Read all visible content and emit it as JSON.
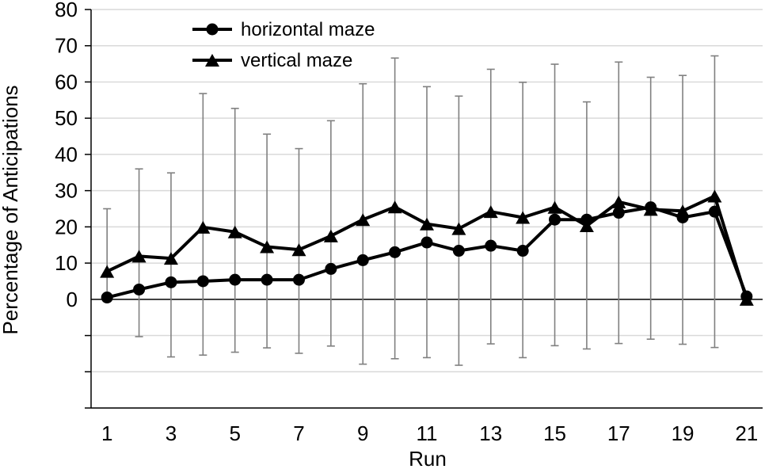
{
  "chart_data": {
    "type": "line",
    "title": "",
    "xlabel": "Run",
    "ylabel": "Percentage of Anticipations",
    "xlim": [
      0.5,
      21.5
    ],
    "ylim": [
      -30,
      80
    ],
    "x_ticks": [
      1,
      3,
      5,
      7,
      9,
      11,
      13,
      15,
      17,
      19,
      21
    ],
    "y_ticks": [
      0,
      10,
      20,
      30,
      40,
      50,
      60,
      70,
      80
    ],
    "y_gridlines": [
      -30,
      -20,
      -10,
      10,
      20,
      30,
      40,
      50,
      60,
      70,
      80
    ],
    "grid": true,
    "legend_position": "top-left",
    "x": [
      1,
      2,
      3,
      4,
      5,
      6,
      7,
      8,
      9,
      10,
      11,
      12,
      13,
      14,
      15,
      16,
      17,
      18,
      19,
      20,
      21
    ],
    "series": [
      {
        "name": "horizontal maze",
        "marker": "circle",
        "color": "#000000",
        "values": [
          0.5,
          2.7,
          4.7,
          5.0,
          5.4,
          5.4,
          5.4,
          8.4,
          10.8,
          13.0,
          15.7,
          13.4,
          14.8,
          13.4,
          22.0,
          22.0,
          23.9,
          25.4,
          22.6,
          24.2,
          0.8
        ]
      },
      {
        "name": "vertical maze",
        "marker": "triangle",
        "color": "#000000",
        "values": [
          7.7,
          11.9,
          11.3,
          19.9,
          18.6,
          14.5,
          13.7,
          17.5,
          22.0,
          25.5,
          20.8,
          19.5,
          24.2,
          22.6,
          25.4,
          20.3,
          26.9,
          24.8,
          24.4,
          28.5,
          0.0
        ]
      }
    ],
    "error_bars": {
      "color": "#808080",
      "x": [
        1,
        2,
        3,
        4,
        5,
        6,
        7,
        8,
        9,
        10,
        11,
        12,
        13,
        14,
        15,
        16,
        17,
        18,
        19,
        20
      ],
      "upper": [
        25.0,
        36.0,
        34.9,
        56.8,
        52.7,
        45.6,
        41.6,
        49.3,
        59.5,
        66.6,
        58.7,
        56.1,
        63.5,
        59.9,
        64.9,
        54.5,
        65.5,
        61.3,
        61.8,
        67.2
      ],
      "lower": [
        0.0,
        -10.3,
        -15.9,
        -15.4,
        -14.6,
        -13.4,
        -14.9,
        -12.9,
        -17.9,
        -16.4,
        -16.1,
        -18.2,
        -12.3,
        -16.1,
        -12.8,
        -13.7,
        -12.2,
        -11.0,
        -12.4,
        -13.3
      ]
    }
  }
}
